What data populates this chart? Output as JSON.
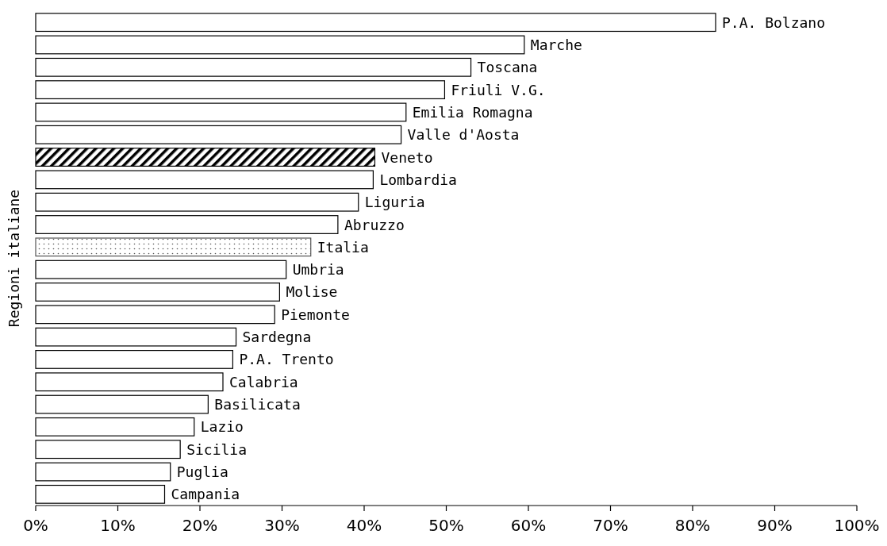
{
  "chart_data": {
    "type": "bar",
    "orientation": "horizontal",
    "ylabel": "Regioni italiane",
    "categories": [
      "P.A. Bolzano",
      "Marche",
      "Toscana",
      "Friuli V.G.",
      "Emilia Romagna",
      "Valle d'Aosta",
      "Veneto",
      "Lombardia",
      "Liguria",
      "Abruzzo",
      "Italia",
      "Umbria",
      "Molise",
      "Piemonte",
      "Sardegna",
      "P.A. Trento",
      "Calabria",
      "Basilicata",
      "Lazio",
      "Sicilia",
      "Puglia",
      "Campania"
    ],
    "values": [
      82.8,
      59.5,
      53.0,
      49.8,
      45.1,
      44.5,
      41.3,
      41.1,
      39.3,
      36.8,
      33.5,
      30.5,
      29.7,
      29.1,
      24.4,
      24.0,
      22.8,
      21.0,
      19.3,
      17.6,
      16.4,
      15.7
    ],
    "colors": [
      "#ffffff",
      "#ffffff",
      "#ffffff",
      "#ffffff",
      "#ffffff",
      "#ffffff",
      "#000000",
      "#ffffff",
      "#ffffff",
      "#ffffff",
      "#555555",
      "#ffffff",
      "#ffffff",
      "#ffffff",
      "#ffffff",
      "#ffffff",
      "#ffffff",
      "#ffffff",
      "#ffffff",
      "#ffffff",
      "#ffffff",
      "#ffffff"
    ],
    "xlim": [
      0,
      100
    ],
    "xticks": [
      {
        "value": 0,
        "label": "0%"
      },
      {
        "value": 10,
        "label": "10%"
      },
      {
        "value": 20,
        "label": "20%"
      },
      {
        "value": 30,
        "label": "30%"
      },
      {
        "value": 40,
        "label": "40%"
      },
      {
        "value": 50,
        "label": "50%"
      },
      {
        "value": 60,
        "label": "60%"
      },
      {
        "value": 70,
        "label": "70%"
      },
      {
        "value": 80,
        "label": "80%"
      },
      {
        "value": 90,
        "label": "90%"
      },
      {
        "value": 100,
        "label": "100%"
      }
    ],
    "grid": false
  }
}
